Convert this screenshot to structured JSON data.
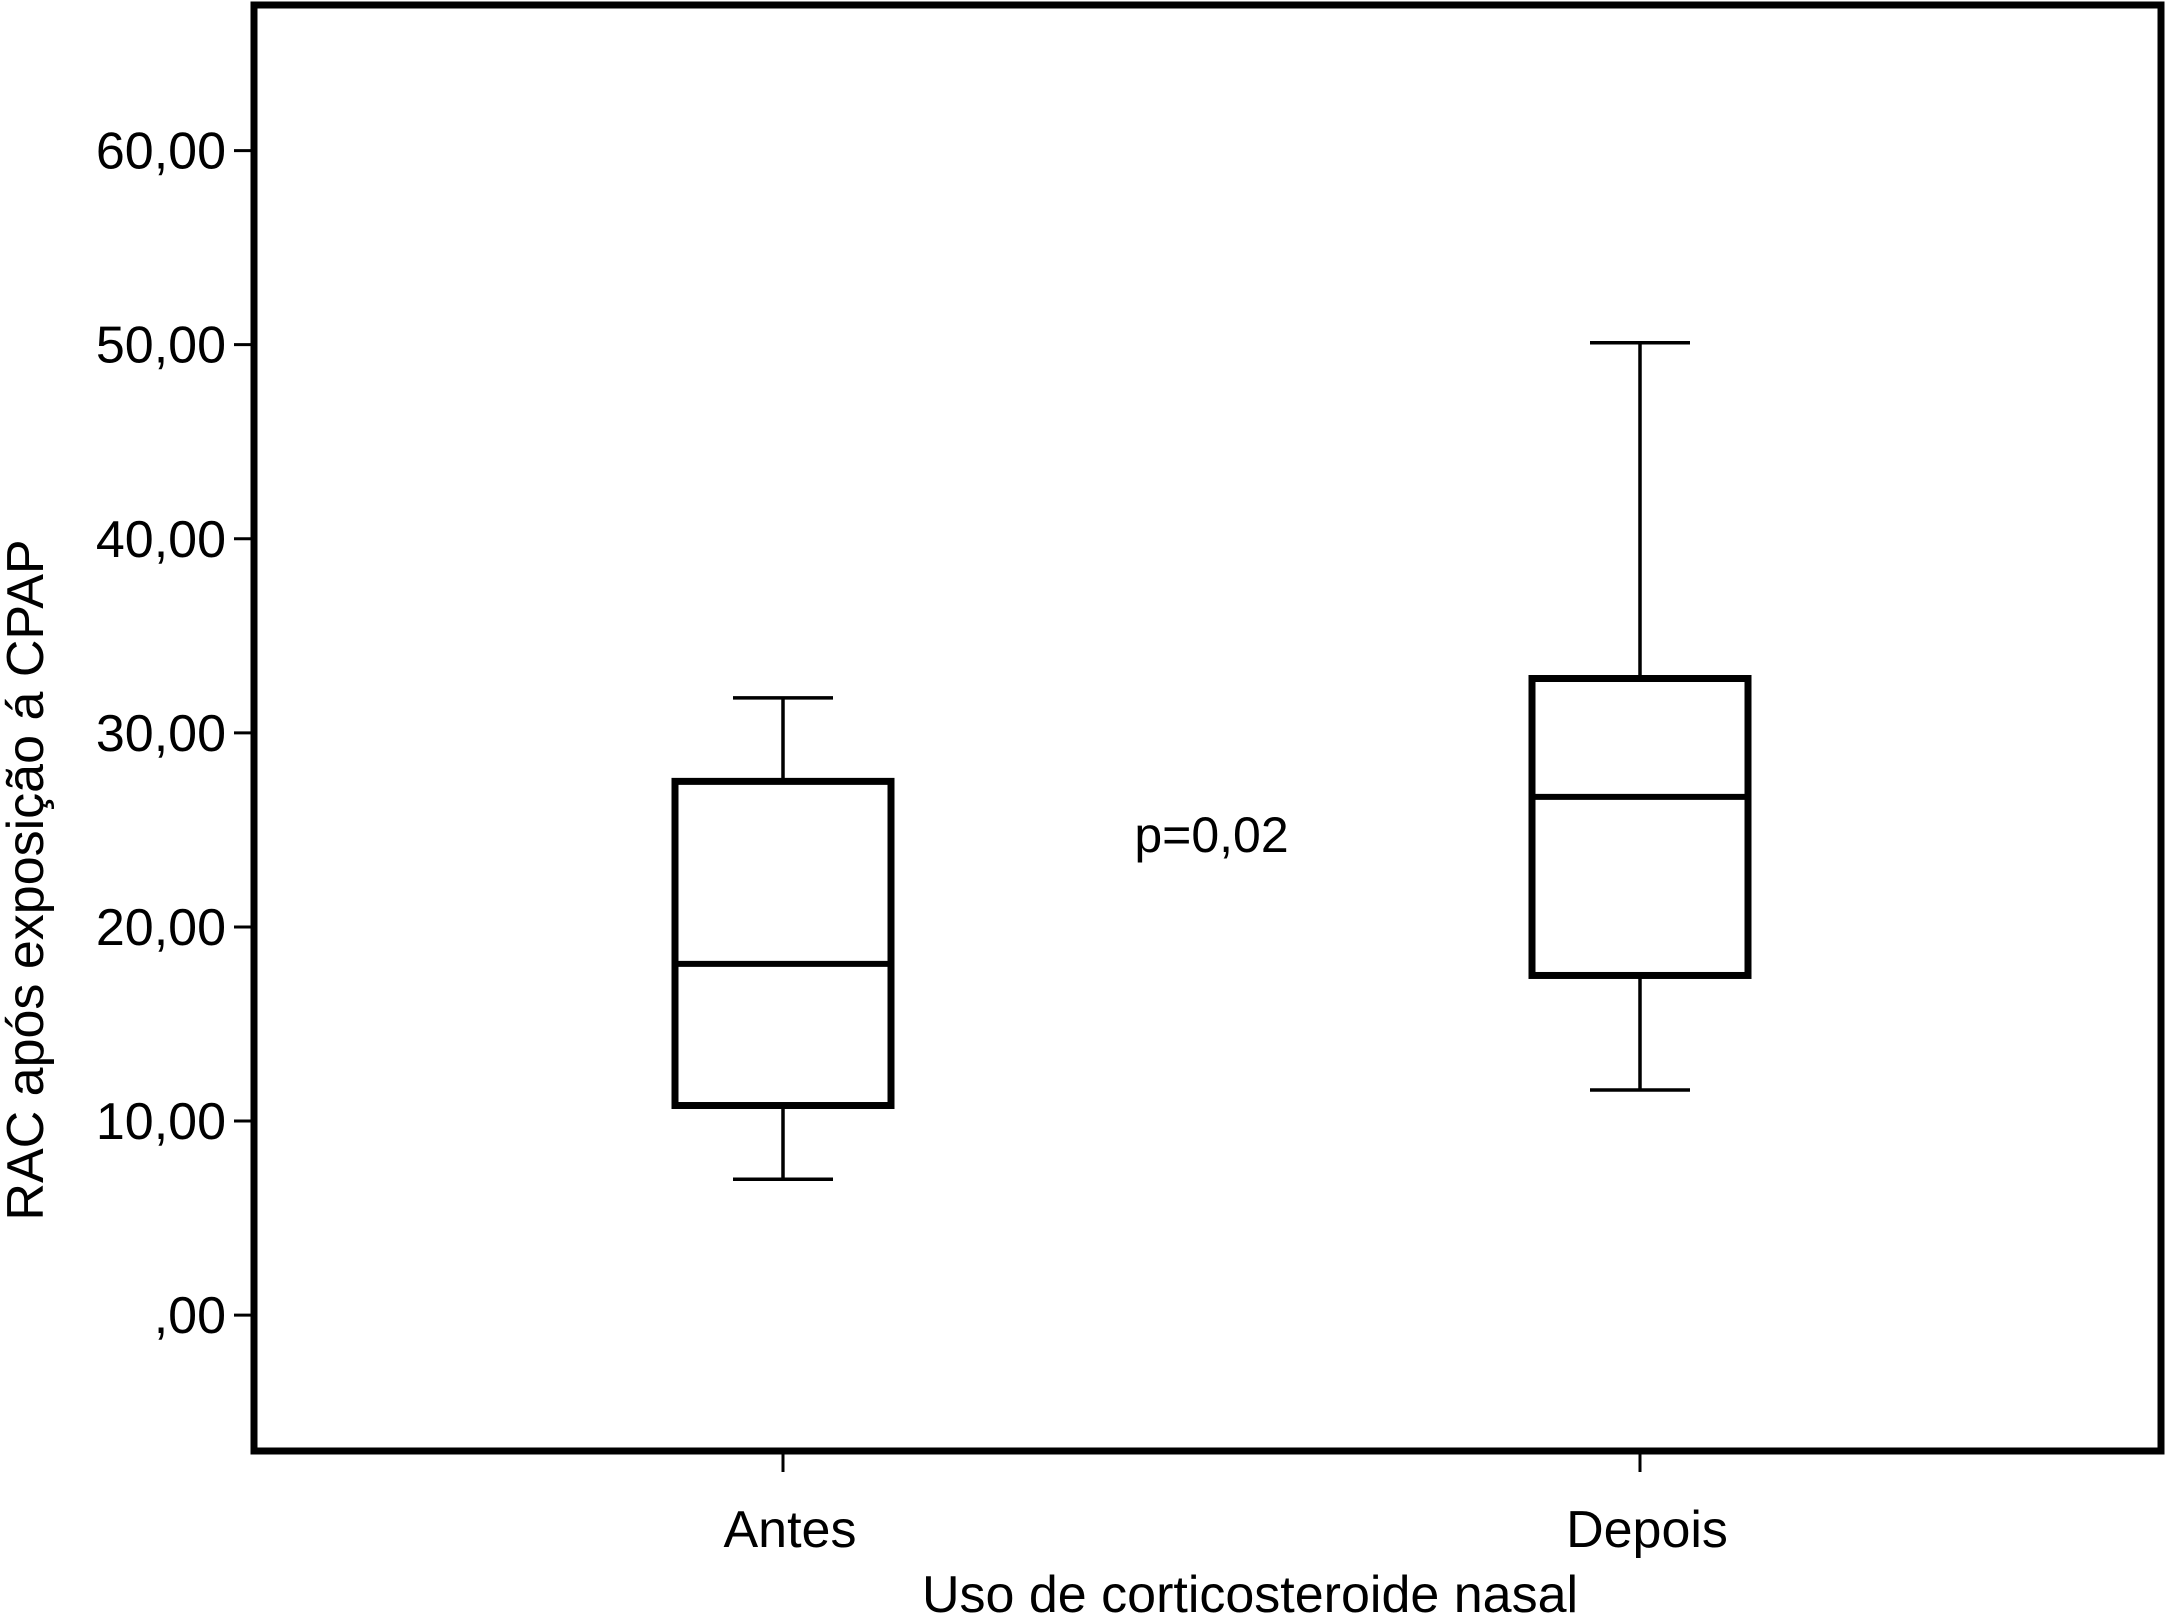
{
  "chart_data": {
    "type": "box",
    "xlabel": "Uso de corticosteroide nasal",
    "ylabel": "RAC após exposição á CPAP",
    "ylim": [
      -7,
      67.5
    ],
    "yticks": [
      {
        "value": 0,
        "label": ",00"
      },
      {
        "value": 10,
        "label": "10,00"
      },
      {
        "value": 20,
        "label": "20,00"
      },
      {
        "value": 30,
        "label": "30,00"
      },
      {
        "value": 40,
        "label": "40,00"
      },
      {
        "value": 50,
        "label": "50,00"
      },
      {
        "value": 60,
        "label": "60,00"
      }
    ],
    "categories": [
      "Antes",
      "Depois"
    ],
    "boxes": [
      {
        "category": "Antes",
        "min": 7.0,
        "q1": 10.8,
        "median": 18.1,
        "q3": 27.5,
        "max": 31.8
      },
      {
        "category": "Depois",
        "min": 11.6,
        "q1": 17.5,
        "median": 26.7,
        "q3": 32.8,
        "max": 50.1
      }
    ],
    "annotation": "p=0,02",
    "annotation_position": {
      "x": 1.5,
      "y": 24.8
    },
    "grid": false,
    "legend": "none"
  }
}
